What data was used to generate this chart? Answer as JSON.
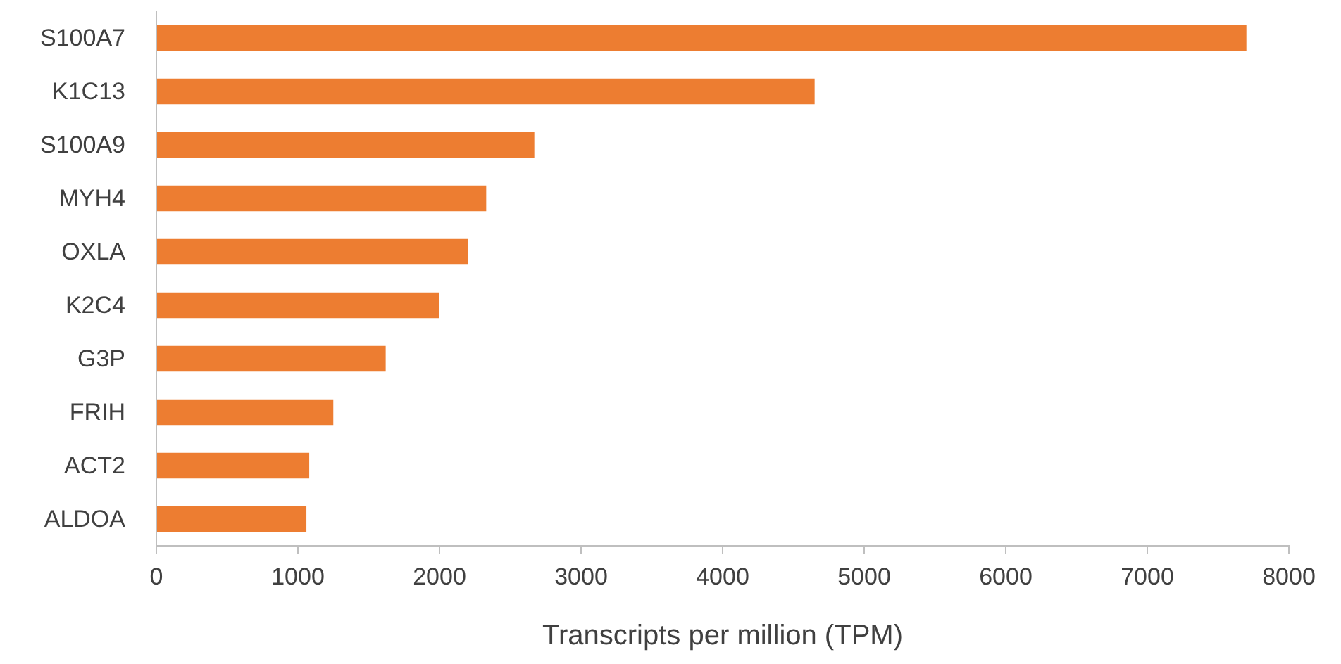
{
  "chart_data": {
    "type": "bar",
    "orientation": "horizontal",
    "xlabel": "Transcripts per million (TPM)",
    "categories": [
      "S100A7",
      "K1C13",
      "S100A9",
      "MYH4",
      "OXLA",
      "K2C4",
      "G3P",
      "FRIH",
      "ACT2",
      "ALDOA"
    ],
    "values": [
      7700,
      4650,
      2670,
      2330,
      2200,
      2000,
      1620,
      1250,
      1080,
      1060
    ],
    "color": "#ed7d31",
    "xlim": [
      0,
      8000
    ],
    "xticks": [
      0,
      1000,
      2000,
      3000,
      4000,
      5000,
      6000,
      7000,
      8000
    ],
    "grid": false
  }
}
